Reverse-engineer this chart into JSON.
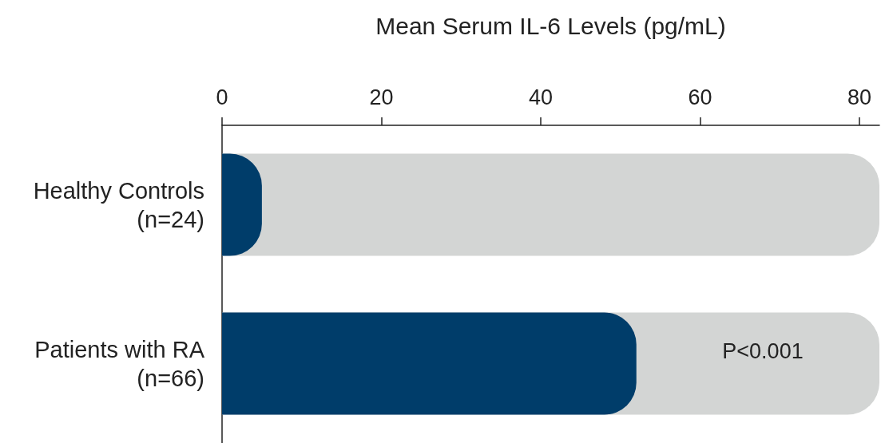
{
  "chart_data": {
    "type": "bar",
    "orientation": "horizontal",
    "xlabel": "Mean Serum IL-6 Levels (pg/mL)",
    "categories": [
      "Healthy Controls\n(n=24)",
      "Patients with RA\n(n=66)"
    ],
    "values": [
      5,
      52
    ],
    "color": "#003d6a",
    "xlim": [
      0,
      82.5
    ],
    "xticks": [
      0,
      20,
      40,
      60,
      80
    ],
    "grid": false,
    "annotations": [
      "P<0.001"
    ]
  }
}
